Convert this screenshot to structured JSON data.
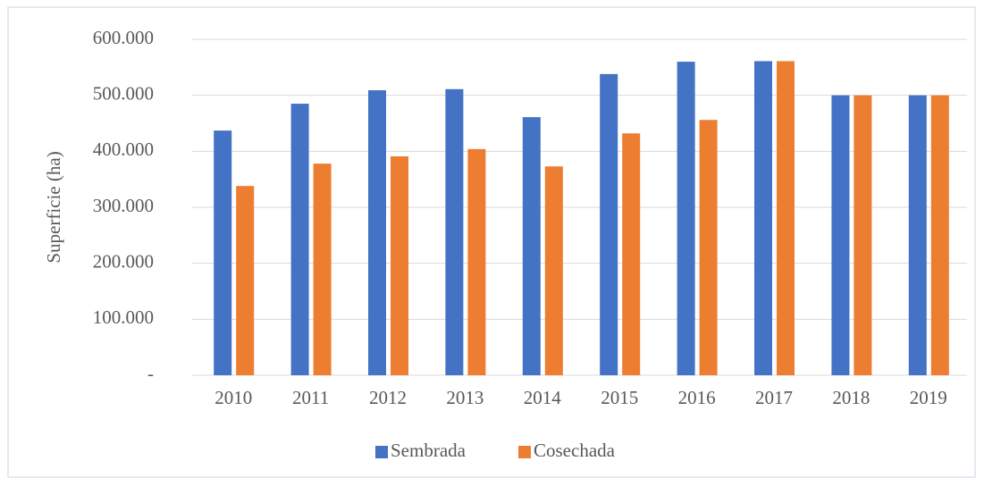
{
  "chart_data": {
    "type": "bar",
    "categories": [
      "2010",
      "2011",
      "2012",
      "2013",
      "2014",
      "2015",
      "2016",
      "2017",
      "2018",
      "2019"
    ],
    "series": [
      {
        "name": "Sembrada",
        "color": "#4472c4",
        "values": [
          437000,
          485000,
          509000,
          511000,
          461000,
          538000,
          560000,
          561000,
          500000,
          500000
        ]
      },
      {
        "name": "Cosechada",
        "color": "#ed7d31",
        "values": [
          338000,
          378000,
          391000,
          404000,
          373000,
          432000,
          456000,
          561000,
          500000,
          500000
        ]
      }
    ],
    "ylabel": "Superficie (ha)",
    "ylim": [
      0,
      600000
    ],
    "yticks": [
      {
        "value": 0,
        "label": "-"
      },
      {
        "value": 100000,
        "label": "100.000"
      },
      {
        "value": 200000,
        "label": "200.000"
      },
      {
        "value": 300000,
        "label": "300.000"
      },
      {
        "value": 400000,
        "label": "400.000"
      },
      {
        "value": 500000,
        "label": "500.000"
      },
      {
        "value": 600000,
        "label": "600.000"
      }
    ],
    "grid": true,
    "legend": "bottom"
  }
}
